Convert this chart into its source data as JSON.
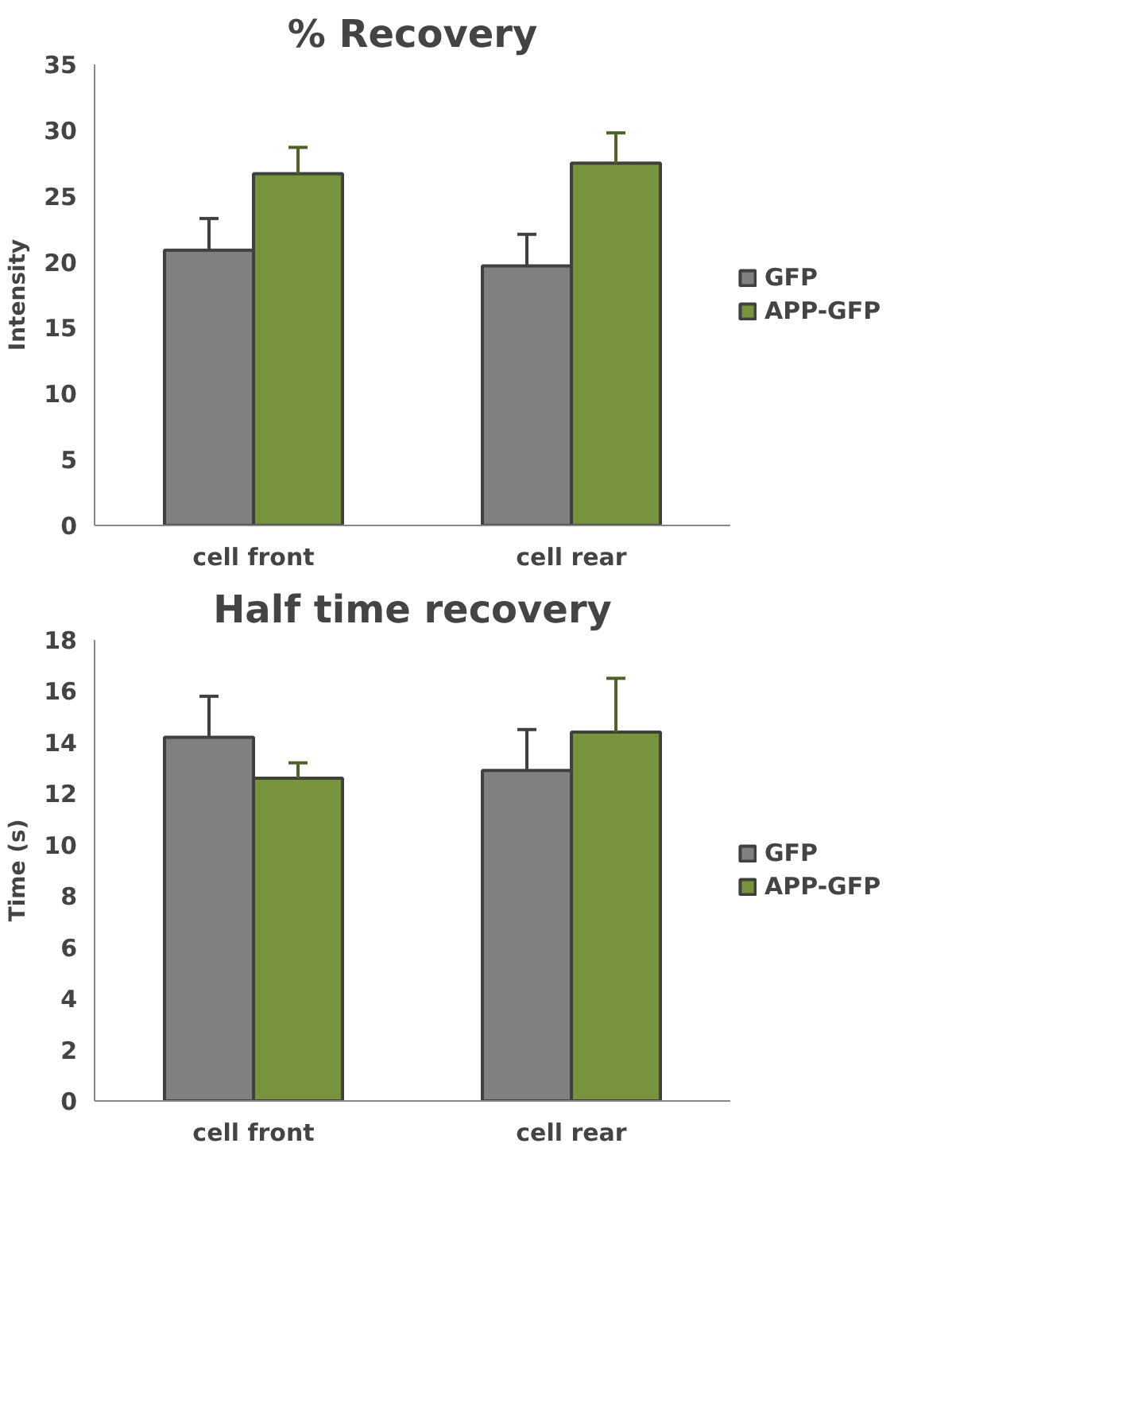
{
  "chart_data": [
    {
      "type": "bar",
      "title": "% Recovery",
      "ylabel": "Intensity",
      "categories": [
        "cell front",
        "cell rear"
      ],
      "series": [
        {
          "name": "GFP",
          "color": "#808080",
          "values": [
            20.9,
            19.7
          ],
          "errors": [
            [
              20.9,
              23.3
            ],
            [
              19.7,
              22.1
            ]
          ]
        },
        {
          "name": "APP-GFP",
          "color": "#77933c",
          "values": [
            26.7,
            27.5
          ],
          "errors": [
            [
              26.7,
              28.7
            ],
            [
              27.5,
              29.8
            ]
          ]
        }
      ],
      "ylim": [
        0,
        35
      ],
      "yticks": [
        0,
        5,
        10,
        15,
        20,
        25,
        30,
        35
      ],
      "grid": false,
      "legend": "right"
    },
    {
      "type": "bar",
      "title": "Half time recovery",
      "ylabel": "Time (s)",
      "categories": [
        "cell front",
        "cell rear"
      ],
      "series": [
        {
          "name": "GFP",
          "color": "#808080",
          "values": [
            14.2,
            12.9
          ],
          "errors": [
            [
              14.2,
              15.8
            ],
            [
              12.9,
              14.5
            ]
          ]
        },
        {
          "name": "APP-GFP",
          "color": "#77933c",
          "values": [
            12.6,
            14.4
          ],
          "errors": [
            [
              12.6,
              13.2
            ],
            [
              14.4,
              16.5
            ]
          ]
        }
      ],
      "ylim": [
        0,
        18
      ],
      "yticks": [
        0,
        2,
        4,
        6,
        8,
        10,
        12,
        14,
        16,
        18
      ],
      "grid": false,
      "legend": "right"
    }
  ]
}
